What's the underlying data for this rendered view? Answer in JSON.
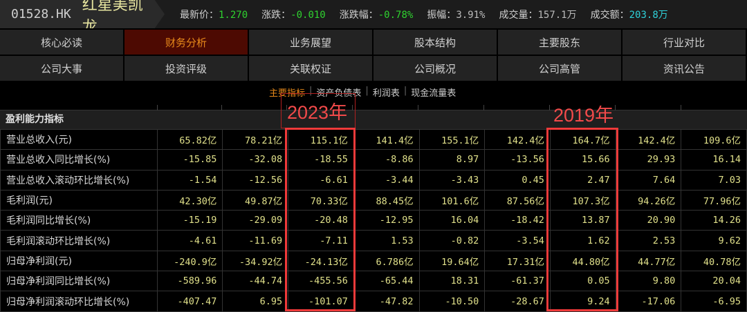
{
  "header": {
    "code": "01528.HK",
    "name": "红星美凯龙",
    "quotes": [
      {
        "label": "最新价：",
        "value": "1.270",
        "color": "green"
      },
      {
        "label": "涨跌：",
        "value": "-0.010",
        "color": "green"
      },
      {
        "label": "涨跌幅：",
        "value": "-0.78%",
        "color": "green"
      },
      {
        "label": "振幅：",
        "value": "3.91%",
        "color": "grey"
      },
      {
        "label": "成交量：",
        "value": "157.1万",
        "color": "grey"
      },
      {
        "label": "成交额：",
        "value": "203.8万",
        "color": "cyan"
      }
    ]
  },
  "nav": [
    "核心必读",
    "财务分析",
    "业务展望",
    "股本结构",
    "主要股东",
    "行业对比",
    "公司大事",
    "投资评级",
    "关联权证",
    "公司概况",
    "公司高管",
    "资讯公告"
  ],
  "nav_active": "财务分析",
  "subtabs": [
    "主要指标",
    "资产负债表",
    "利润表",
    "现金流量表"
  ],
  "subtab_active": "主要指标",
  "section_title": "盈利能力指标",
  "annotations": {
    "box1": "2023年",
    "box2": "2019年",
    "highlight_color": "#f03a3a"
  },
  "rows": [
    {
      "label": "营业总收入(元)",
      "values": [
        "65.82亿",
        "78.21亿",
        "115.1亿",
        "141.4亿",
        "155.1亿",
        "142.4亿",
        "164.7亿",
        "142.4亿",
        "109.6亿"
      ]
    },
    {
      "label": "营业总收入同比增长(%)",
      "values": [
        "-15.85",
        "-32.08",
        "-18.55",
        "-8.86",
        "8.97",
        "-13.56",
        "15.66",
        "29.93",
        "16.14"
      ]
    },
    {
      "label": "营业总收入滚动环比增长(%)",
      "values": [
        "-1.54",
        "-12.56",
        "-6.61",
        "-3.44",
        "-3.43",
        "0.45",
        "2.47",
        "7.64",
        "7.03"
      ]
    },
    {
      "label": "毛利润(元)",
      "values": [
        "42.30亿",
        "49.87亿",
        "70.33亿",
        "88.45亿",
        "101.6亿",
        "87.56亿",
        "107.3亿",
        "94.26亿",
        "77.96亿"
      ]
    },
    {
      "label": "毛利润同比增长(%)",
      "values": [
        "-15.19",
        "-29.09",
        "-20.48",
        "-12.95",
        "16.04",
        "-18.42",
        "13.87",
        "20.90",
        "14.26"
      ]
    },
    {
      "label": "毛利润滚动环比增长(%)",
      "values": [
        "-4.61",
        "-11.69",
        "-7.11",
        "1.53",
        "-0.82",
        "-3.54",
        "1.62",
        "2.53",
        "9.62"
      ]
    },
    {
      "label": "归母净利润(元)",
      "values": [
        "-240.9亿",
        "-34.92亿",
        "-24.13亿",
        "6.786亿",
        "19.64亿",
        "17.31亿",
        "44.80亿",
        "44.77亿",
        "40.78亿"
      ]
    },
    {
      "label": "归母净利润同比增长(%)",
      "values": [
        "-589.96",
        "-44.74",
        "-455.56",
        "-65.44",
        "18.31",
        "-61.37",
        "0.05",
        "9.80",
        "20.04"
      ]
    },
    {
      "label": "归母净利润滚动环比增长(%)",
      "values": [
        "-407.47",
        "6.95",
        "-101.07",
        "-47.82",
        "-10.50",
        "-28.67",
        "9.24",
        "-17.06",
        "-6.95"
      ]
    }
  ]
}
